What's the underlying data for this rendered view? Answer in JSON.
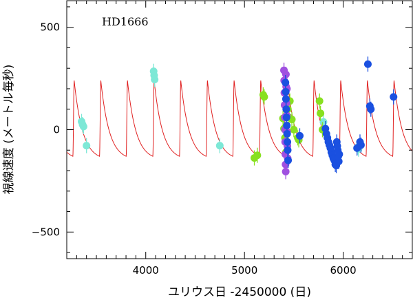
{
  "chart_data": {
    "type": "scatter",
    "star_label": "HD1666",
    "xlabel": "ユリウス日 -2450000 (日)",
    "ylabel": "視線速度 (メートル毎秒)",
    "xlim": [
      3200,
      6700
    ],
    "ylim": [
      -630,
      630
    ],
    "xticks": [
      4000,
      5000,
      6000
    ],
    "xtick_labels": [
      "4000",
      "5000",
      "6000"
    ],
    "yticks": [
      500,
      0,
      -500
    ],
    "ytick_labels": [
      "500",
      "0",
      "−500"
    ],
    "orbit_model": {
      "color": "#e02020",
      "period_days": 270,
      "peak_epoch": 3545,
      "max": 240,
      "min": -130,
      "rise_fraction": 0.05,
      "decay_rate": 3.0
    },
    "series": [
      {
        "color": "#7de8d6",
        "points": [
          [
            3350,
            40
          ],
          [
            3360,
            25
          ],
          [
            3370,
            15
          ],
          [
            3400,
            -78
          ],
          [
            4080,
            285
          ],
          [
            4085,
            265
          ],
          [
            4090,
            245
          ],
          [
            4750,
            -78
          ],
          [
            5800,
            38
          ],
          [
            6150,
            -85
          ],
          [
            6155,
            -95
          ]
        ]
      },
      {
        "color": "#88e020",
        "points": [
          [
            5100,
            -138
          ],
          [
            5130,
            -125
          ],
          [
            5190,
            170
          ],
          [
            5200,
            160
          ],
          [
            5390,
            55
          ],
          [
            5400,
            5
          ],
          [
            5410,
            -40
          ],
          [
            5420,
            -110
          ],
          [
            5440,
            100
          ],
          [
            5450,
            60
          ],
          [
            5460,
            140
          ],
          [
            5480,
            50
          ],
          [
            5500,
            0
          ],
          [
            5540,
            -40
          ],
          [
            5550,
            -50
          ],
          [
            5760,
            140
          ],
          [
            5770,
            80
          ],
          [
            5790,
            0
          ]
        ]
      },
      {
        "color": "#a050e0",
        "points": [
          [
            5400,
            290
          ],
          [
            5402,
            240
          ],
          [
            5404,
            180
          ],
          [
            5406,
            120
          ],
          [
            5408,
            60
          ],
          [
            5410,
            0
          ],
          [
            5412,
            -60
          ],
          [
            5414,
            -120
          ],
          [
            5416,
            -170
          ],
          [
            5418,
            -205
          ],
          [
            5420,
            270
          ],
          [
            5422,
            210
          ],
          [
            5425,
            130
          ],
          [
            5428,
            70
          ],
          [
            5430,
            200
          ],
          [
            5432,
            -10
          ],
          [
            5435,
            -80
          ],
          [
            5438,
            -140
          ]
        ]
      },
      {
        "color": "#1a50e0",
        "points": [
          [
            5415,
            230
          ],
          [
            5418,
            185
          ],
          [
            5420,
            150
          ],
          [
            5423,
            100
          ],
          [
            5426,
            60
          ],
          [
            5429,
            20
          ],
          [
            5432,
            -20
          ],
          [
            5435,
            -60
          ],
          [
            5438,
            -100
          ],
          [
            5442,
            -150
          ],
          [
            5560,
            -30
          ],
          [
            5820,
            5
          ],
          [
            5830,
            -20
          ],
          [
            5840,
            -40
          ],
          [
            5850,
            -60
          ],
          [
            5860,
            -75
          ],
          [
            5870,
            -90
          ],
          [
            5880,
            -110
          ],
          [
            5890,
            -125
          ],
          [
            5900,
            -140
          ],
          [
            5910,
            -150
          ],
          [
            5920,
            -170
          ],
          [
            5930,
            -175
          ],
          [
            5935,
            -60
          ],
          [
            5940,
            -80
          ],
          [
            5945,
            -100
          ],
          [
            5950,
            -130
          ],
          [
            5955,
            -155
          ],
          [
            5960,
            -120
          ],
          [
            6140,
            -90
          ],
          [
            6170,
            -60
          ],
          [
            6180,
            -75
          ],
          [
            6250,
            320
          ],
          [
            6270,
            115
          ],
          [
            6280,
            100
          ],
          [
            6510,
            160
          ]
        ]
      }
    ]
  }
}
